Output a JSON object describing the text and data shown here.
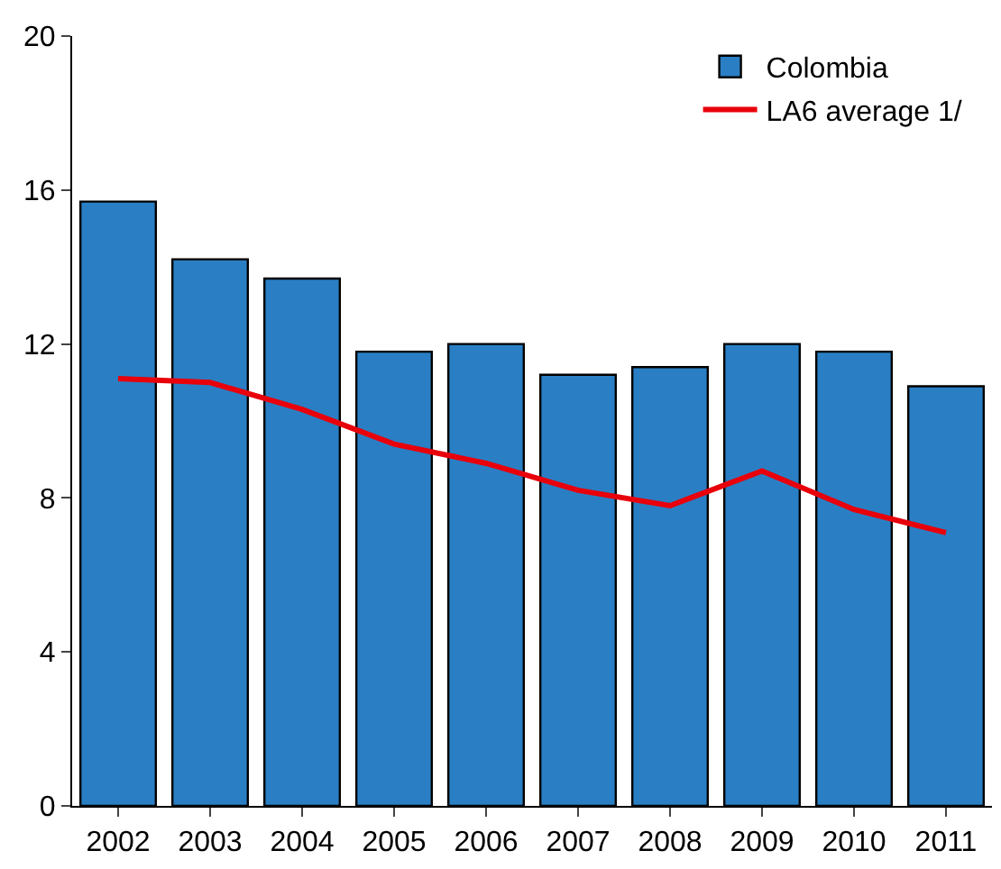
{
  "chart_data": {
    "type": "bar",
    "categories": [
      "2002",
      "2003",
      "2004",
      "2005",
      "2006",
      "2007",
      "2008",
      "2009",
      "2010",
      "2011"
    ],
    "series": [
      {
        "name": "Colombia",
        "color": "#2a7fc4",
        "values": [
          15.7,
          14.2,
          13.7,
          11.8,
          12.0,
          11.2,
          11.4,
          12.0,
          11.8,
          10.9
        ]
      },
      {
        "name": "LA6 average 1/",
        "type": "line",
        "color": "#e8000b",
        "values": [
          11.1,
          11.0,
          10.3,
          9.4,
          8.9,
          8.2,
          7.8,
          8.7,
          7.7,
          7.1
        ]
      }
    ],
    "ylim": [
      0,
      20
    ],
    "yticks": [
      0,
      4,
      8,
      12,
      16,
      20
    ],
    "legend": "top right",
    "marker": "none",
    "line_style": "solid"
  }
}
